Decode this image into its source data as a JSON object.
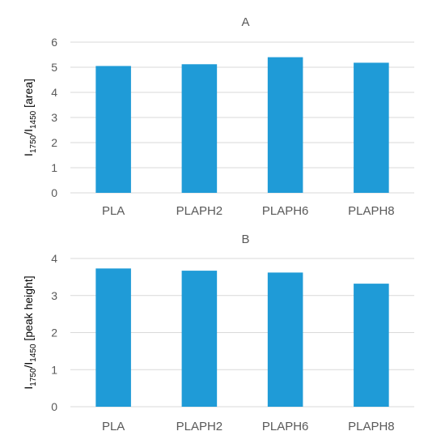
{
  "chart_data": [
    {
      "type": "bar",
      "title": "A",
      "categories": [
        "PLA",
        "PLAPH2",
        "PLAPH6",
        "PLAPH8"
      ],
      "values": [
        5.05,
        5.12,
        5.4,
        5.18
      ],
      "ylabel": {
        "base": "I",
        "sub1": "1750",
        "mid": "/I",
        "sub2": "1450",
        "suffix": "  [area]"
      },
      "ylim": [
        0,
        6
      ],
      "yticks": [
        "0",
        "1",
        "2",
        "3",
        "4",
        "5",
        "6"
      ],
      "grid": true,
      "bar_color": "#1f9bd7"
    },
    {
      "type": "bar",
      "title": "B",
      "categories": [
        "PLA",
        "PLAPH2",
        "PLAPH6",
        "PLAPH8"
      ],
      "values": [
        3.73,
        3.67,
        3.62,
        3.32
      ],
      "ylabel": {
        "base": "I",
        "sub1": "1750",
        "mid": "/I",
        "sub2": "1450",
        "suffix": "  [peak height]"
      },
      "ylim": [
        0,
        4
      ],
      "yticks": [
        "0",
        "1",
        "2",
        "3",
        "4"
      ],
      "grid": true,
      "bar_color": "#1f9bd7"
    }
  ]
}
